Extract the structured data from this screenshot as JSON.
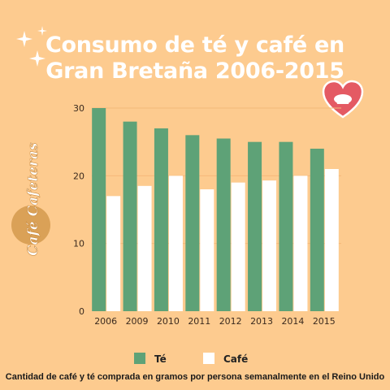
{
  "title_line1": "Consumo de té y café en",
  "title_line2": "Gran Bretaña 2006-2015",
  "logo_text": "Café Cafeteras",
  "footnote": "Cantidad de café y té comprada en gramos por persona semanalmente en el Reino Unido",
  "colors": {
    "background": "#FDCB8F",
    "te": "#5EA277",
    "cafe": "#FFFFFF",
    "grid": "#F4B97A",
    "axis_text": "#3B2A1E",
    "logo": "#D49A4E",
    "heart": "#E45A63"
  },
  "icons": {
    "sparkles": "sparkles-icon",
    "heart": "heart-coffee-icon",
    "logo": "cafe-cafeteras-logo"
  },
  "chart_data": {
    "type": "bar",
    "categories": [
      "2006",
      "2009",
      "2010",
      "2011",
      "2012",
      "2013",
      "2014",
      "2015"
    ],
    "series": [
      {
        "name": "Té",
        "values": [
          30,
          28,
          27,
          26,
          25.5,
          25,
          25,
          24
        ]
      },
      {
        "name": "Café",
        "values": [
          17,
          18.5,
          20,
          18,
          19,
          19.3,
          20,
          21
        ]
      }
    ],
    "yticks": [
      0,
      10,
      20,
      30
    ],
    "ylim": [
      0,
      30
    ],
    "grid": true,
    "legend": "bottom"
  }
}
